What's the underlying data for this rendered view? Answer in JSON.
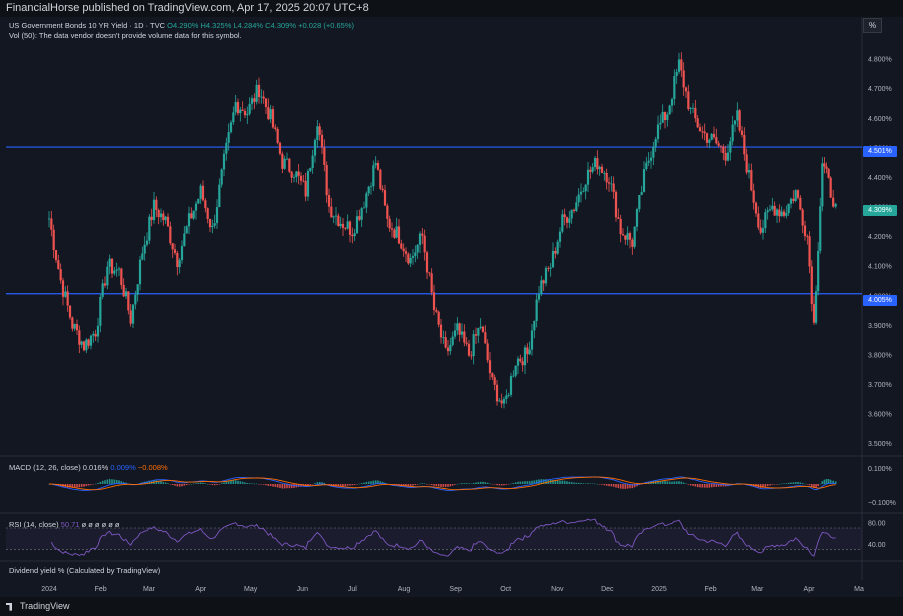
{
  "header": {
    "publisher": "FinancialHorse published on TradingView.com, Apr 17, 2025 20:07 UTC+8"
  },
  "legend": {
    "symbol": "US Government Bonds 10 YR Yield · 1D · TVC",
    "o": "O4.290%",
    "h": "H4.325%",
    "l": "L4.284%",
    "c": "C4.309%",
    "chg": "+0.028 (+0.65%)",
    "vol": "Vol (50): The data vendor doesn't provide volume data for this symbol."
  },
  "macd_legend": {
    "title": "MACD (12, 26, close)",
    "v1": "0.016%",
    "v2": "0.009%",
    "v3": "−0.008%"
  },
  "rsi_legend": {
    "title": "RSI (14, close)",
    "v1": "50.71",
    "rest": "ø ø ø ø ø ø"
  },
  "dividend_legend": "Dividend yield % (Calculated by TradingView)",
  "percent_button": "%",
  "footer": {
    "brand": "TradingView"
  },
  "colors": {
    "up": "#26a69a",
    "down": "#ef5350",
    "hline": "#2962ff",
    "rsi": "#7e57c2",
    "macd": "#2962ff",
    "signal": "#ff6d00",
    "bg": "#131722"
  },
  "tags": {
    "hline1": "4.501%",
    "hline2": "4.005%",
    "last": "4.309%"
  },
  "chart_data": [
    {
      "type": "candlestick",
      "title": "US Government Bonds 10 YR Yield · 1D · TVC",
      "y_ticks": [
        "4.800%",
        "4.700%",
        "4.600%",
        "4.500%",
        "4.400%",
        "4.300%",
        "4.200%",
        "4.100%",
        "4.000%",
        "3.900%",
        "3.800%",
        "3.700%",
        "3.600%",
        "3.500%"
      ],
      "ylim": [
        3.47,
        4.88
      ],
      "x_ticks": [
        "2024",
        "Feb",
        "Mar",
        "Apr",
        "May",
        "Jun",
        "Jul",
        "Aug",
        "Sep",
        "Oct",
        "Nov",
        "Dec",
        "2025",
        "Feb",
        "Mar",
        "Apr",
        "Ma"
      ],
      "horizontal_lines": [
        4.501,
        4.005
      ],
      "last": 4.309,
      "close_path": [
        [
          "2024-01-01",
          4.26
        ],
        [
          "2024-01-08",
          4.05
        ],
        [
          "2024-01-15",
          3.9
        ],
        [
          "2024-01-22",
          3.83
        ],
        [
          "2024-01-29",
          3.88
        ],
        [
          "2024-02-05",
          4.1
        ],
        [
          "2024-02-12",
          4.08
        ],
        [
          "2024-02-19",
          3.92
        ],
        [
          "2024-02-26",
          4.15
        ],
        [
          "2024-03-04",
          4.3
        ],
        [
          "2024-03-11",
          4.25
        ],
        [
          "2024-03-18",
          4.12
        ],
        [
          "2024-03-25",
          4.25
        ],
        [
          "2024-04-01",
          4.35
        ],
        [
          "2024-04-08",
          4.22
        ],
        [
          "2024-04-15",
          4.45
        ],
        [
          "2024-04-22",
          4.65
        ],
        [
          "2024-04-29",
          4.62
        ],
        [
          "2024-05-06",
          4.7
        ],
        [
          "2024-05-13",
          4.6
        ],
        [
          "2024-05-20",
          4.45
        ],
        [
          "2024-05-27",
          4.42
        ],
        [
          "2024-06-03",
          4.35
        ],
        [
          "2024-06-10",
          4.6
        ],
        [
          "2024-06-17",
          4.3
        ],
        [
          "2024-06-24",
          4.25
        ],
        [
          "2024-07-01",
          4.22
        ],
        [
          "2024-07-08",
          4.32
        ],
        [
          "2024-07-15",
          4.45
        ],
        [
          "2024-07-22",
          4.25
        ],
        [
          "2024-07-29",
          4.2
        ],
        [
          "2024-08-05",
          4.12
        ],
        [
          "2024-08-12",
          4.2
        ],
        [
          "2024-08-19",
          3.95
        ],
        [
          "2024-08-26",
          3.8
        ],
        [
          "2024-09-02",
          3.88
        ],
        [
          "2024-09-09",
          3.8
        ],
        [
          "2024-09-16",
          3.9
        ],
        [
          "2024-09-23",
          3.7
        ],
        [
          "2024-09-30",
          3.62
        ],
        [
          "2024-10-07",
          3.78
        ],
        [
          "2024-10-14",
          3.8
        ],
        [
          "2024-10-21",
          4.02
        ],
        [
          "2024-10-28",
          4.1
        ],
        [
          "2024-11-04",
          4.25
        ],
        [
          "2024-11-11",
          4.3
        ],
        [
          "2024-11-18",
          4.4
        ],
        [
          "2024-11-25",
          4.45
        ],
        [
          "2024-12-02",
          4.4
        ],
        [
          "2024-12-09",
          4.22
        ],
        [
          "2024-12-16",
          4.18
        ],
        [
          "2024-12-23",
          4.4
        ],
        [
          "2024-12-30",
          4.55
        ],
        [
          "2025-01-06",
          4.62
        ],
        [
          "2025-01-13",
          4.78
        ],
        [
          "2025-01-20",
          4.62
        ],
        [
          "2025-01-27",
          4.55
        ],
        [
          "2025-02-03",
          4.52
        ],
        [
          "2025-02-10",
          4.48
        ],
        [
          "2025-02-17",
          4.6
        ],
        [
          "2025-02-24",
          4.4
        ],
        [
          "2025-03-03",
          4.22
        ],
        [
          "2025-03-10",
          4.3
        ],
        [
          "2025-03-17",
          4.28
        ],
        [
          "2025-03-24",
          4.35
        ],
        [
          "2025-03-31",
          4.2
        ],
        [
          "2025-04-04",
          3.9
        ],
        [
          "2025-04-09",
          4.45
        ],
        [
          "2025-04-14",
          4.35
        ],
        [
          "2025-04-17",
          4.309
        ]
      ]
    },
    {
      "type": "bar",
      "title": "MACD (12, 26, close)",
      "y_ticks": [
        "0.100%",
        "−0.100%"
      ]
    },
    {
      "type": "line",
      "title": "RSI (14, close)",
      "y_ticks": [
        "80.00",
        "40.00"
      ]
    }
  ]
}
